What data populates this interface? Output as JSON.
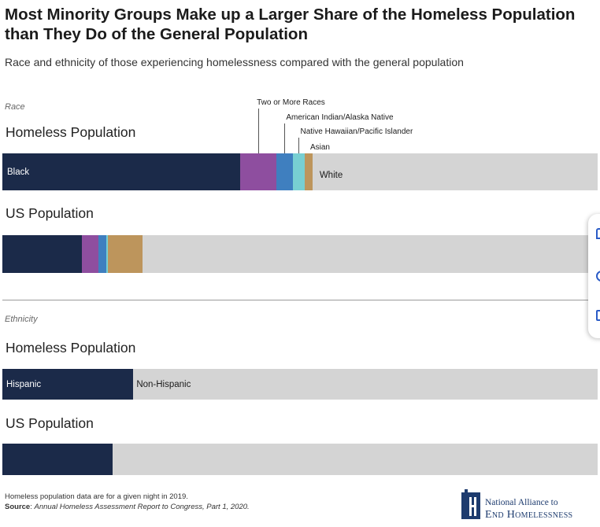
{
  "title": "Most Minority Groups Make up a Larger Share of the Homeless Population than They Do of the General Population",
  "subtitle": "Race and ethnicity of those experiencing homelessness compared with the general population",
  "chart_data": [
    {
      "type": "bar",
      "orientation": "horizontal-stacked-100",
      "section_label": "Race",
      "categories": [
        "Homeless Population",
        "US Population"
      ],
      "series": [
        {
          "name": "Black",
          "color": "#1b2a49",
          "values": [
            40,
            13.4
          ]
        },
        {
          "name": "Two or More Races",
          "color": "#8e4e9f",
          "values": [
            6,
            2.8
          ]
        },
        {
          "name": "American Indian/Alaska Native",
          "color": "#3f7fbf",
          "values": [
            2.8,
            1.3
          ]
        },
        {
          "name": "Native Hawaiian/Pacific Islander",
          "color": "#78cfd2",
          "values": [
            2,
            0.2
          ]
        },
        {
          "name": "Asian",
          "color": "#bd955c",
          "values": [
            1.3,
            5.9
          ]
        },
        {
          "name": "White",
          "color": "#d4d4d4",
          "values": [
            47.9,
            76.4
          ]
        }
      ],
      "ylim": [
        0,
        100
      ]
    },
    {
      "type": "bar",
      "orientation": "horizontal-stacked-100",
      "section_label": "Ethnicity",
      "categories": [
        "Homeless Population",
        "US Population"
      ],
      "series": [
        {
          "name": "Hispanic",
          "color": "#1b2a49",
          "values": [
            22,
            18.5
          ]
        },
        {
          "name": "Non-Hispanic",
          "color": "#d4d4d4",
          "values": [
            78,
            81.5
          ]
        }
      ],
      "ylim": [
        0,
        100
      ]
    }
  ],
  "footnote": {
    "note": "Homeless population data are for a given night in 2019.",
    "source_label": "Source",
    "source_text": "Annual Homeless Assessment Report to Congress, Part 1, 2020."
  },
  "logo": {
    "line1": "National Alliance to",
    "line2": "End Homelessness"
  },
  "side_panel_icons": [
    "comment-icon",
    "chat-icon",
    "bookmark-icon"
  ]
}
